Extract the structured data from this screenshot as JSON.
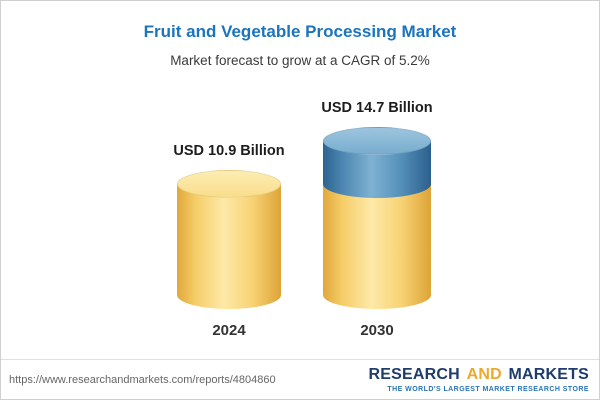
{
  "chart_data": {
    "type": "bar",
    "bar_style": "3d-cylinder",
    "title": "Fruit and Vegetable Processing Market",
    "subtitle": "Market forecast to grow at a CAGR of 5.2%",
    "categories": [
      "2024",
      "2030"
    ],
    "values": [
      10.9,
      14.7
    ],
    "value_labels": [
      "USD 10.9 Billion",
      "USD 14.7 Billion"
    ],
    "unit": "USD Billion",
    "cagr_pct": 5.2,
    "ylim": [
      0,
      14.7
    ],
    "grid": false,
    "legend": "none",
    "notes": "2030 cylinder stacks growth segment (blue) above the 2024 baseline level (yellow)"
  },
  "colors": {
    "title_blue": "#1b74bc",
    "bar_yellow": "#f6d06f",
    "bar_growth_blue": "#4a85b0",
    "logo_navy": "#1e3c6e",
    "logo_gold": "#eda92b",
    "tagline_blue": "#2a75b6"
  },
  "footer": {
    "url": "https://www.researchandmarkets.com/reports/4804860",
    "logo": {
      "word1": "RESEARCH",
      "word2": "AND",
      "word3": "MARKETS",
      "tagline": "THE WORLD'S LARGEST MARKET RESEARCH STORE"
    }
  }
}
